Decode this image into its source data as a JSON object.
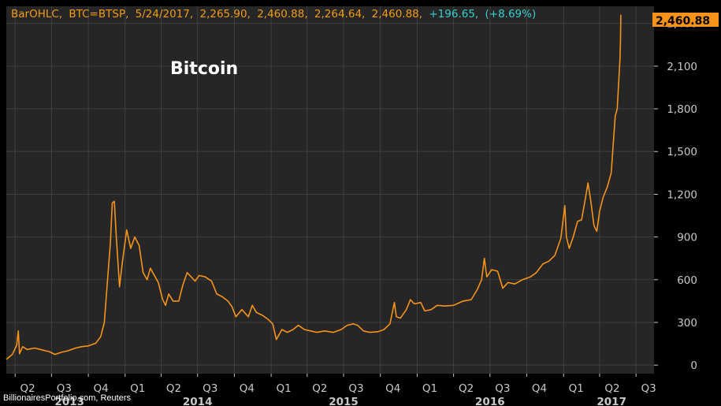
{
  "header": {
    "study": "BarOHLC,",
    "symbol": "BTC=BTSP,",
    "date": "5/24/2017,",
    "open": "2,265.90,",
    "high": "2,460.88,",
    "low": "2,264.64,",
    "close": "2,460.88,",
    "change": "+196.65,",
    "change_pct": "(+8.69%)"
  },
  "last_price_label": "2,460.88",
  "source": "BillionairesPortfolio.com, Reuters",
  "colors": {
    "background": "#000000",
    "plot_background": "#262626",
    "grid": "#3f3f3f",
    "line": "#f7931a",
    "header_text": "#f39c12",
    "change_text": "#32d2d2",
    "last_price_bg": "#f7931a"
  },
  "chart_data": {
    "type": "line",
    "title": "Bitcoin",
    "series_name": "",
    "y_ticks": [
      "0",
      "300",
      "600",
      "900",
      "1,200",
      "1,500",
      "1,800",
      "2,100",
      "2,400"
    ],
    "y_tick_values": [
      0,
      300,
      600,
      900,
      1200,
      1500,
      1800,
      2100,
      2400
    ],
    "ylim": [
      -60,
      2520
    ],
    "x_ticks": [
      "Q2",
      "Q3",
      "Q4",
      "Q1",
      "Q2",
      "Q3",
      "Q4",
      "Q1",
      "Q2",
      "Q3",
      "Q4",
      "Q1",
      "Q2",
      "Q3",
      "Q4",
      "Q1",
      "Q2",
      "Q3"
    ],
    "x_tick_dates": [
      "2013-04-01",
      "2013-07-01",
      "2013-10-01",
      "2014-01-01",
      "2014-04-01",
      "2014-07-01",
      "2014-10-01",
      "2015-01-01",
      "2015-04-01",
      "2015-07-01",
      "2015-10-01",
      "2016-01-01",
      "2016-04-01",
      "2016-07-01",
      "2016-10-01",
      "2017-01-01",
      "2017-04-01",
      "2017-07-01"
    ],
    "year_labels": [
      "2013",
      "2014",
      "2015",
      "2016",
      "2017"
    ],
    "year_label_dates": [
      "2013-08-15",
      "2014-07-01",
      "2015-07-01",
      "2016-07-01",
      "2017-05-01"
    ],
    "xlim": [
      "2013-03-10",
      "2017-08-15"
    ],
    "grid": true,
    "legend": "none",
    "points": [
      [
        "2013-03-10",
        40
      ],
      [
        "2013-03-25",
        75
      ],
      [
        "2013-04-05",
        140
      ],
      [
        "2013-04-09",
        240
      ],
      [
        "2013-04-12",
        80
      ],
      [
        "2013-04-20",
        130
      ],
      [
        "2013-05-01",
        110
      ],
      [
        "2013-05-20",
        120
      ],
      [
        "2013-06-10",
        105
      ],
      [
        "2013-06-25",
        95
      ],
      [
        "2013-07-10",
        75
      ],
      [
        "2013-07-25",
        90
      ],
      [
        "2013-08-10",
        100
      ],
      [
        "2013-08-30",
        120
      ],
      [
        "2013-09-15",
        130
      ],
      [
        "2013-10-01",
        135
      ],
      [
        "2013-10-20",
        155
      ],
      [
        "2013-11-01",
        200
      ],
      [
        "2013-11-10",
        300
      ],
      [
        "2013-11-18",
        600
      ],
      [
        "2013-11-25",
        850
      ],
      [
        "2013-11-30",
        1140
      ],
      [
        "2013-12-05",
        1150
      ],
      [
        "2013-12-10",
        900
      ],
      [
        "2013-12-18",
        550
      ],
      [
        "2013-12-25",
        720
      ],
      [
        "2014-01-05",
        950
      ],
      [
        "2014-01-15",
        820
      ],
      [
        "2014-01-25",
        900
      ],
      [
        "2014-02-05",
        840
      ],
      [
        "2014-02-15",
        650
      ],
      [
        "2014-02-25",
        600
      ],
      [
        "2014-03-05",
        680
      ],
      [
        "2014-03-15",
        630
      ],
      [
        "2014-03-25",
        580
      ],
      [
        "2014-04-05",
        460
      ],
      [
        "2014-04-12",
        420
      ],
      [
        "2014-04-20",
        500
      ],
      [
        "2014-05-01",
        450
      ],
      [
        "2014-05-15",
        450
      ],
      [
        "2014-05-25",
        560
      ],
      [
        "2014-06-05",
        650
      ],
      [
        "2014-06-15",
        620
      ],
      [
        "2014-06-25",
        590
      ],
      [
        "2014-07-05",
        630
      ],
      [
        "2014-07-20",
        620
      ],
      [
        "2014-08-05",
        590
      ],
      [
        "2014-08-18",
        500
      ],
      [
        "2014-09-01",
        480
      ],
      [
        "2014-09-15",
        450
      ],
      [
        "2014-09-25",
        410
      ],
      [
        "2014-10-05",
        340
      ],
      [
        "2014-10-20",
        390
      ],
      [
        "2014-11-05",
        340
      ],
      [
        "2014-11-15",
        420
      ],
      [
        "2014-11-25",
        370
      ],
      [
        "2014-12-10",
        350
      ],
      [
        "2014-12-25",
        320
      ],
      [
        "2015-01-05",
        290
      ],
      [
        "2015-01-14",
        180
      ],
      [
        "2015-01-20",
        210
      ],
      [
        "2015-01-28",
        250
      ],
      [
        "2015-02-10",
        230
      ],
      [
        "2015-02-25",
        250
      ],
      [
        "2015-03-10",
        280
      ],
      [
        "2015-03-25",
        250
      ],
      [
        "2015-04-10",
        240
      ],
      [
        "2015-04-25",
        230
      ],
      [
        "2015-05-15",
        240
      ],
      [
        "2015-06-05",
        230
      ],
      [
        "2015-06-25",
        250
      ],
      [
        "2015-07-10",
        280
      ],
      [
        "2015-07-25",
        290
      ],
      [
        "2015-08-05",
        280
      ],
      [
        "2015-08-20",
        240
      ],
      [
        "2015-09-05",
        230
      ],
      [
        "2015-09-25",
        235
      ],
      [
        "2015-10-10",
        250
      ],
      [
        "2015-10-25",
        290
      ],
      [
        "2015-11-02",
        400
      ],
      [
        "2015-11-05",
        440
      ],
      [
        "2015-11-10",
        340
      ],
      [
        "2015-11-20",
        330
      ],
      [
        "2015-12-05",
        390
      ],
      [
        "2015-12-15",
        460
      ],
      [
        "2015-12-25",
        430
      ],
      [
        "2016-01-10",
        440
      ],
      [
        "2016-01-20",
        380
      ],
      [
        "2016-02-05",
        390
      ],
      [
        "2016-02-20",
        420
      ],
      [
        "2016-03-10",
        415
      ],
      [
        "2016-04-01",
        420
      ],
      [
        "2016-04-25",
        450
      ],
      [
        "2016-05-15",
        460
      ],
      [
        "2016-05-30",
        530
      ],
      [
        "2016-06-10",
        600
      ],
      [
        "2016-06-17",
        750
      ],
      [
        "2016-06-23",
        620
      ],
      [
        "2016-07-05",
        670
      ],
      [
        "2016-07-20",
        660
      ],
      [
        "2016-08-02",
        540
      ],
      [
        "2016-08-15",
        580
      ],
      [
        "2016-09-01",
        570
      ],
      [
        "2016-09-20",
        600
      ],
      [
        "2016-10-10",
        620
      ],
      [
        "2016-10-25",
        650
      ],
      [
        "2016-11-10",
        710
      ],
      [
        "2016-11-25",
        730
      ],
      [
        "2016-12-10",
        770
      ],
      [
        "2016-12-25",
        890
      ],
      [
        "2017-01-04",
        1120
      ],
      [
        "2017-01-08",
        900
      ],
      [
        "2017-01-15",
        820
      ],
      [
        "2017-01-25",
        900
      ],
      [
        "2017-02-05",
        1010
      ],
      [
        "2017-02-15",
        1020
      ],
      [
        "2017-02-25",
        1180
      ],
      [
        "2017-03-03",
        1280
      ],
      [
        "2017-03-10",
        1150
      ],
      [
        "2017-03-18",
        980
      ],
      [
        "2017-03-25",
        940
      ],
      [
        "2017-04-01",
        1080
      ],
      [
        "2017-04-10",
        1180
      ],
      [
        "2017-04-20",
        1250
      ],
      [
        "2017-04-30",
        1350
      ],
      [
        "2017-05-05",
        1550
      ],
      [
        "2017-05-10",
        1750
      ],
      [
        "2017-05-15",
        1800
      ],
      [
        "2017-05-18",
        1950
      ],
      [
        "2017-05-20",
        2050
      ],
      [
        "2017-05-22",
        2150
      ],
      [
        "2017-05-23",
        2270
      ],
      [
        "2017-05-24",
        2460.88
      ]
    ]
  }
}
